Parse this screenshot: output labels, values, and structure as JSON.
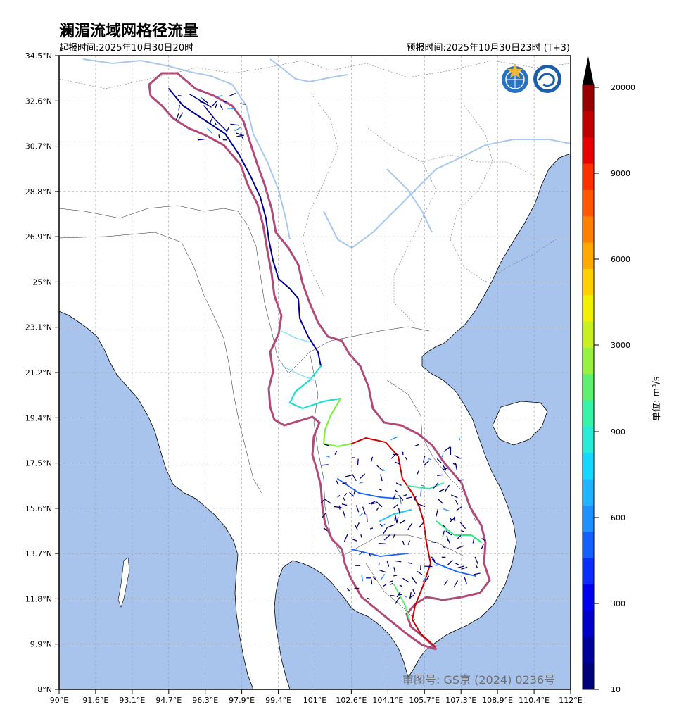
{
  "header": {
    "title": "澜湄流域网格径流量",
    "issue_time": "起报时间:2025年10月30日20时",
    "forecast_time": "预报时间:2025年10月30日23时 (T+3)"
  },
  "axes": {
    "lat_labels": [
      "34.5°N",
      "32.6°N",
      "30.7°N",
      "28.8°N",
      "26.9°N",
      "25°N",
      "23.1°N",
      "21.2°N",
      "19.4°N",
      "17.5°N",
      "15.6°N",
      "13.7°N",
      "11.8°N",
      "9.9°N",
      "8°N"
    ],
    "lon_labels": [
      "90°E",
      "91.6°E",
      "93.1°E",
      "94.7°E",
      "96.3°E",
      "97.9°E",
      "99.4°E",
      "101°E",
      "102.6°E",
      "104.1°E",
      "105.7°E",
      "107.3°E",
      "108.9°E",
      "110.4°E",
      "112°E"
    ]
  },
  "colorbar": {
    "labels": [
      "20000",
      "9000",
      "6000",
      "3000",
      "900",
      "600",
      "300",
      "10"
    ],
    "unit": "单位: m³/s",
    "colors": [
      "#00007a",
      "#00009a",
      "#0000c8",
      "#0000f0",
      "#0a2cff",
      "#1460ff",
      "#1e90ff",
      "#1eb4ff",
      "#14d8ff",
      "#28ecd8",
      "#38f4a8",
      "#60f070",
      "#98f040",
      "#c8f020",
      "#f0f000",
      "#ffd000",
      "#ffa800",
      "#ff8000",
      "#ff5800",
      "#ff3000",
      "#e80000",
      "#c00000",
      "#980000"
    ]
  },
  "watermark": {
    "approval": "审图号: GS京 (2024) 0236号"
  },
  "colors": {
    "ocean": "#a8c4ec",
    "basin_border": "#b04a78",
    "river_low": "#000090",
    "river_mid": "#1890ff",
    "river_high": "#cc0000"
  }
}
